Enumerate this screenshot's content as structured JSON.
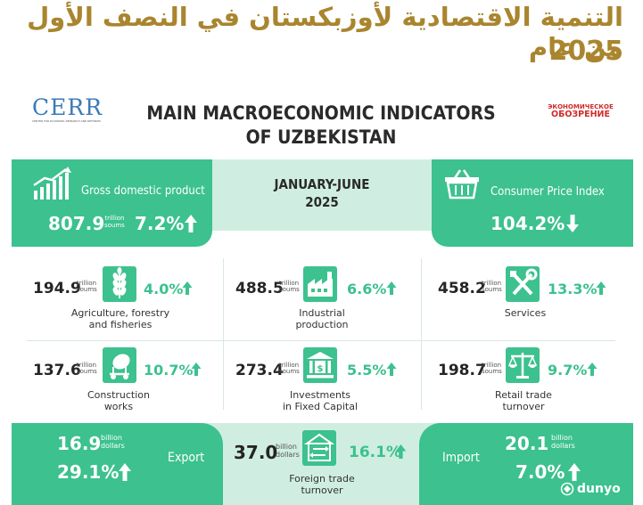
{
  "header": {
    "arabic_title": "التنمية الاقتصادية لأوزبكستان في النصف الأول من عام",
    "arabic_year": "2025"
  },
  "logos": {
    "left": "CERR",
    "left_sub": "CENTER FOR ECONOMIC RESEARCH AND REFORMS",
    "right_line1": "ЭКОНОМИЧЕСКОЕ",
    "right_line2": "ОБОЗРЕНИЕ"
  },
  "title": {
    "line1": "MAIN MACROECONOMIC INDICATORS",
    "line2": "OF UZBEKISTAN"
  },
  "period": {
    "line1": "JANUARY-JUNE",
    "line2": "2025"
  },
  "gdp": {
    "label": "Gross domestic product",
    "value": "807.9",
    "unit1": "trillion",
    "unit2": "soums",
    "pct": "7.2%"
  },
  "cpi": {
    "label": "Consumer Price Index",
    "pct": "104.2%"
  },
  "sectors": [
    {
      "value": "194.9",
      "unit1": "trillion",
      "unit2": "soums",
      "pct": "4.0%",
      "cap1": "Agriculture, forestry",
      "cap2": "and fisheries",
      "icon": "wheat-icon"
    },
    {
      "value": "488.5",
      "unit1": "trillion",
      "unit2": "soums",
      "pct": "6.6%",
      "cap1": "Industrial",
      "cap2": "production",
      "icon": "factory-icon"
    },
    {
      "value": "458.2",
      "unit1": "trillion",
      "unit2": "soums",
      "pct": "13.3%",
      "cap1": "Services",
      "cap2": "",
      "icon": "tools-icon"
    },
    {
      "value": "137.6",
      "unit1": "trillion",
      "unit2": "soums",
      "pct": "10.7%",
      "cap1": "Construction",
      "cap2": "works",
      "icon": "concrete-mixer-icon"
    },
    {
      "value": "273.4",
      "unit1": "trillion",
      "unit2": "soums",
      "pct": "5.5%",
      "cap1": "Investments",
      "cap2": "in Fixed Capital",
      "icon": "bank-icon"
    },
    {
      "value": "198.7",
      "unit1": "trillion",
      "unit2": "soums",
      "pct": "9.7%",
      "cap1": "Retail trade",
      "cap2": "turnover",
      "icon": "scales-icon"
    }
  ],
  "export": {
    "value": "16.9",
    "unit1": "billion",
    "unit2": "dollars",
    "pct": "29.1%",
    "label": "Export"
  },
  "trade": {
    "value": "37.0",
    "unit1": "billion",
    "unit2": "dollars",
    "pct": "16.1%",
    "cap1": "Foreign trade",
    "cap2": "turnover"
  },
  "import": {
    "value": "20.1",
    "unit1": "billion",
    "unit2": "dollars",
    "pct": "7.0%",
    "label": "Import"
  },
  "watermark": "dunyo",
  "colors": {
    "accent_green": "#3cc18f",
    "light_green": "#cfeee1",
    "gold": "#a9852e",
    "logo_red": "#d12b2b"
  }
}
